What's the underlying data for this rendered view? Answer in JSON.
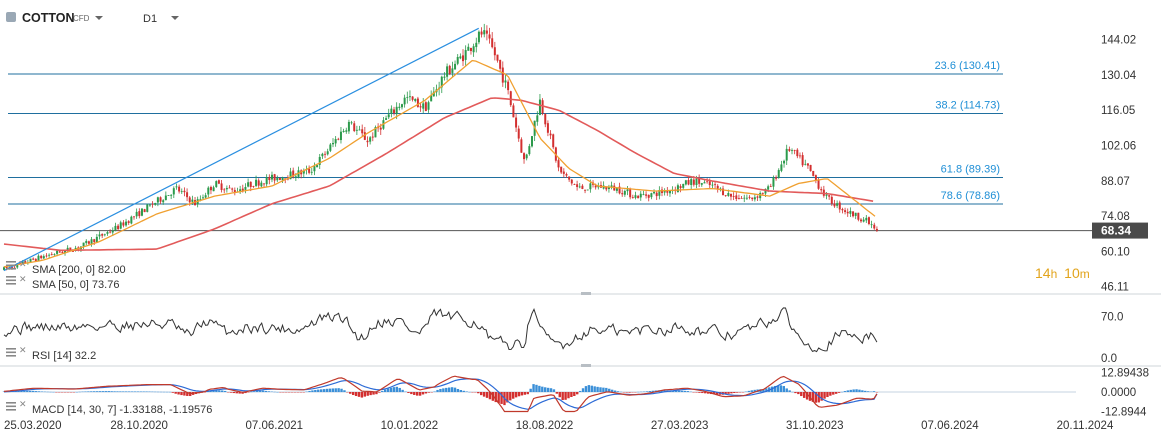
{
  "header": {
    "symbol": "COTTON",
    "instrument_type": "CFD",
    "timeframe": "D1"
  },
  "price_badge": "68.34",
  "timer": {
    "hours": "14",
    "h_unit": "h",
    "minutes": "10",
    "m_unit": "m"
  },
  "colors": {
    "up_candle": "#2b9a4b",
    "down_candle": "#d32f2f",
    "fib_line": "#1f6f9f",
    "fib_text": "#1f8fd6",
    "trendline": "#2a8fe0",
    "sma200": "#e25a5a",
    "sma50": "#f0a030",
    "price_badge": "#4a4a4a",
    "rsi_line": "#333333",
    "macd_line": "#c0392b",
    "macd_signal": "#2d6bd6",
    "macd_hist_pos": "#3a8fd8",
    "macd_hist_neg": "#d32f2f"
  },
  "chart_data": [
    {
      "type": "candlestick",
      "name_panel": "price",
      "y_ticks": [
        144.02,
        130.04,
        116.05,
        102.06,
        88.07,
        74.08,
        60.1,
        46.11
      ],
      "y_tick_labels": [
        "144.02",
        "130.04",
        "116.05",
        "102.06",
        "88.07",
        "74.08",
        "60.10",
        "46.11"
      ],
      "ylim": [
        44,
        151
      ],
      "x_tick_labels": [
        "25.03.2020",
        "28.10.2020",
        "07.06.2021",
        "10.01.2022",
        "18.08.2022",
        "27.03.2023",
        "31.10.2023",
        "07.06.2024",
        "20.11.2024"
      ],
      "x_range_months": [
        0,
        56
      ],
      "last_price": 68.34,
      "price_path": [
        [
          0,
          53
        ],
        [
          2,
          58
        ],
        [
          4,
          62
        ],
        [
          6,
          70
        ],
        [
          8,
          80
        ],
        [
          9,
          85
        ],
        [
          10,
          79
        ],
        [
          11,
          87
        ],
        [
          12,
          84
        ],
        [
          13,
          87
        ],
        [
          14,
          89
        ],
        [
          16,
          92
        ],
        [
          17,
          101
        ],
        [
          18,
          111
        ],
        [
          19,
          104
        ],
        [
          20,
          113
        ],
        [
          21,
          121
        ],
        [
          22,
          117
        ],
        [
          23,
          130
        ],
        [
          24,
          138
        ],
        [
          25,
          147
        ],
        [
          25.6,
          139
        ],
        [
          26.3,
          124
        ],
        [
          27.2,
          95
        ],
        [
          28,
          120
        ],
        [
          29,
          92
        ],
        [
          30,
          85
        ],
        [
          31,
          86
        ],
        [
          32,
          85
        ],
        [
          33,
          82
        ],
        [
          34,
          83
        ],
        [
          35,
          85
        ],
        [
          36,
          88
        ],
        [
          37,
          86
        ],
        [
          38,
          82
        ],
        [
          39,
          81
        ],
        [
          40,
          85
        ],
        [
          41,
          101
        ],
        [
          42,
          93
        ],
        [
          43,
          81
        ],
        [
          44,
          76
        ],
        [
          45,
          72.5
        ],
        [
          45.6,
          68.34
        ]
      ],
      "fib_levels": [
        {
          "label": "23.6 (130.41)",
          "value": 130.41
        },
        {
          "label": "38.2 (114.73)",
          "value": 114.73
        },
        {
          "label": "61.8 (89.39)",
          "value": 89.39
        },
        {
          "label": "78.6 (78.86)",
          "value": 78.86
        }
      ],
      "reference_line": 68.34,
      "trendline": {
        "from": [
          0,
          52.5
        ],
        "to": [
          24.8,
          148.5
        ]
      },
      "sma200_path": [
        [
          0,
          63
        ],
        [
          3,
          60.5
        ],
        [
          8,
          61
        ],
        [
          11,
          69
        ],
        [
          14,
          79
        ],
        [
          17,
          86
        ],
        [
          20,
          99
        ],
        [
          23,
          113
        ],
        [
          25.5,
          121
        ],
        [
          27,
          120
        ],
        [
          29,
          116
        ],
        [
          31,
          108
        ],
        [
          33,
          99
        ],
        [
          35,
          91
        ],
        [
          37,
          88
        ],
        [
          40,
          84
        ],
        [
          43,
          83
        ],
        [
          45.4,
          80
        ]
      ],
      "sma50_path": [
        [
          0,
          54
        ],
        [
          2,
          56.5
        ],
        [
          5,
          64
        ],
        [
          8,
          75
        ],
        [
          11,
          82
        ],
        [
          14,
          86
        ],
        [
          17,
          97
        ],
        [
          19,
          107
        ],
        [
          22,
          120
        ],
        [
          24.5,
          136
        ],
        [
          26.3,
          130
        ],
        [
          28,
          105
        ],
        [
          29.5,
          93
        ],
        [
          31,
          86
        ],
        [
          34,
          84
        ],
        [
          37,
          85
        ],
        [
          40,
          82
        ],
        [
          41.5,
          87
        ],
        [
          43,
          89
        ],
        [
          45.5,
          74
        ]
      ],
      "legend": [
        {
          "label": "SMA [200, 0] 82.00",
          "color": "#e25a5a"
        },
        {
          "label": "SMA [50, 0] 73.76",
          "color": "#f0a030"
        }
      ]
    },
    {
      "type": "line",
      "name_panel": "rsi",
      "label": "RSI [14] 32.2",
      "y_tick_labels": [
        "70.0",
        "0.0"
      ],
      "y_ticks": [
        70,
        0
      ],
      "ylim": [
        0,
        100
      ],
      "last_value": 32.2
    },
    {
      "type": "line",
      "name_panel": "macd",
      "label": "MACD [14, 30, 7] -1.33188, -1.19576",
      "y_tick_labels": [
        "12.89438",
        "0.0000",
        "-12.8944"
      ],
      "y_ticks": [
        12.89438,
        0,
        -12.8944
      ],
      "ylim": [
        -16,
        16
      ],
      "macd_value": -1.33188,
      "signal_value": -1.19576
    }
  ]
}
